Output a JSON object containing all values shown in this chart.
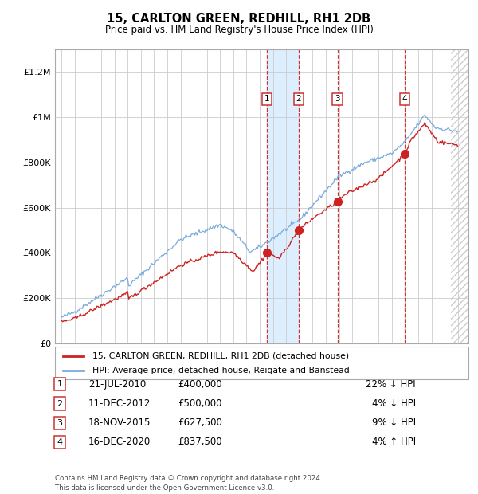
{
  "title": "15, CARLTON GREEN, REDHILL, RH1 2DB",
  "subtitle": "Price paid vs. HM Land Registry's House Price Index (HPI)",
  "legend_line1": "15, CARLTON GREEN, REDHILL, RH1 2DB (detached house)",
  "legend_line2": "HPI: Average price, detached house, Reigate and Banstead",
  "transactions": [
    {
      "num": 1,
      "date": "21-JUL-2010",
      "year": 2010.55,
      "price": 400000,
      "pct": "22%",
      "dir": "↓"
    },
    {
      "num": 2,
      "date": "11-DEC-2012",
      "year": 2012.95,
      "price": 500000,
      "pct": "4%",
      "dir": "↓"
    },
    {
      "num": 3,
      "date": "18-NOV-2015",
      "year": 2015.88,
      "price": 627500,
      "pct": "9%",
      "dir": "↓"
    },
    {
      "num": 4,
      "date": "16-DEC-2020",
      "year": 2020.96,
      "price": 837500,
      "pct": "4%",
      "dir": "↑"
    }
  ],
  "table_rows": [
    [
      "1",
      "21-JUL-2010",
      "£400,000",
      "22% ↓ HPI"
    ],
    [
      "2",
      "11-DEC-2012",
      "£500,000",
      "4% ↓ HPI"
    ],
    [
      "3",
      "18-NOV-2015",
      "£627,500",
      "9% ↓ HPI"
    ],
    [
      "4",
      "16-DEC-2020",
      "£837,500",
      "4% ↑ HPI"
    ]
  ],
  "footer": "Contains HM Land Registry data © Crown copyright and database right 2024.\nThis data is licensed under the Open Government Licence v3.0.",
  "hpi_color": "#7aaadd",
  "price_color": "#cc2222",
  "dot_color": "#cc2222",
  "shade_color": "#ddeeff",
  "vline_color": "#cc3333",
  "ylim": [
    0,
    1300000
  ],
  "yticks": [
    0,
    200000,
    400000,
    600000,
    800000,
    1000000,
    1200000
  ],
  "xlim_start": 1994.5,
  "xlim_end": 2025.8,
  "xticks": [
    1995,
    1996,
    1997,
    1998,
    1999,
    2000,
    2001,
    2002,
    2003,
    2004,
    2005,
    2006,
    2007,
    2008,
    2009,
    2010,
    2011,
    2012,
    2013,
    2014,
    2015,
    2016,
    2017,
    2018,
    2019,
    2020,
    2021,
    2022,
    2023,
    2024,
    2025
  ]
}
